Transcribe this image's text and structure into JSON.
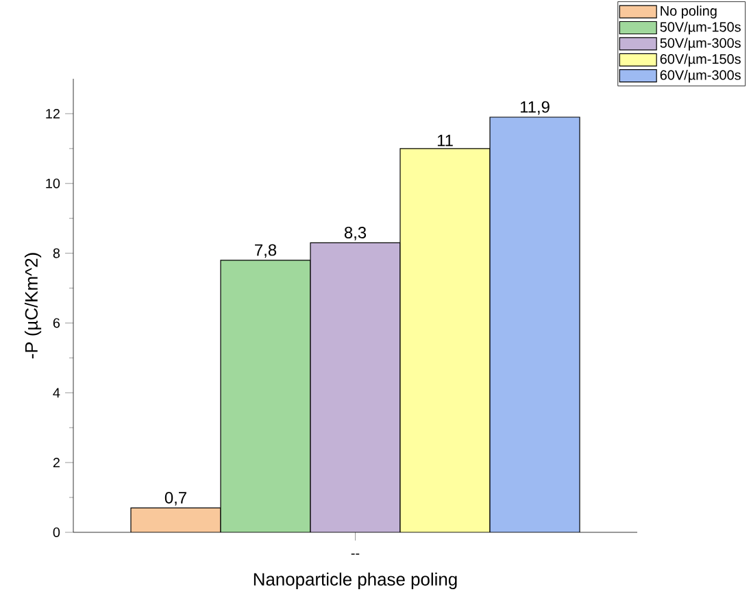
{
  "chart_data": {
    "type": "bar",
    "xlabel": "Nanoparticle phase poling",
    "ylabel": "-P (µC/Km^2)",
    "categories": [
      "--"
    ],
    "ylim": [
      0,
      13
    ],
    "yticks": [
      0,
      2,
      4,
      6,
      8,
      10,
      12
    ],
    "legend": "top right",
    "grid": false,
    "series": [
      {
        "name": "No poling",
        "color": "#f9c89b",
        "values": [
          0.7
        ],
        "value_labels": [
          "0,7"
        ]
      },
      {
        "name": "50V/µm-150s",
        "color": "#a0d89c",
        "values": [
          7.8
        ],
        "value_labels": [
          "7,8"
        ]
      },
      {
        "name": "50V/µm-300s",
        "color": "#c3b2d6",
        "values": [
          8.3
        ],
        "value_labels": [
          "8,3"
        ]
      },
      {
        "name": "60V/µm-150s",
        "color": "#ffff9f",
        "values": [
          11
        ],
        "value_labels": [
          "11"
        ]
      },
      {
        "name": "60V/µm-300s",
        "color": "#9dbaf2",
        "values": [
          11.9
        ],
        "value_labels": [
          "11,9"
        ]
      }
    ]
  }
}
